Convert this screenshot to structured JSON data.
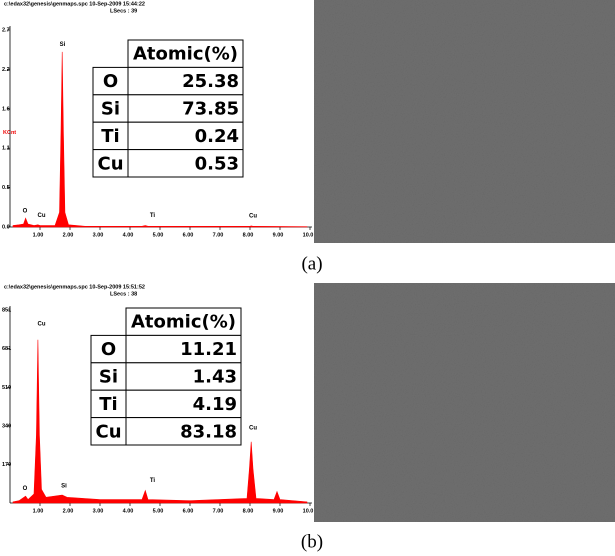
{
  "chart_data": [
    {
      "type": "area",
      "header": "c:\\edax32\\genesis\\genmaps.spc 10-Sep-2009 15:44:22",
      "subheader": "LSecs : 39",
      "ylabel": "KCnt",
      "color": "#ff0000",
      "x": [
        0.1,
        0.3,
        0.45,
        0.52,
        0.6,
        0.8,
        0.93,
        1.0,
        1.5,
        1.65,
        1.7,
        1.74,
        1.78,
        1.83,
        1.95,
        2.5,
        4.4,
        4.51,
        4.6,
        8.0,
        8.04,
        8.1,
        9.9
      ],
      "values": [
        0.02,
        0.03,
        0.04,
        0.12,
        0.04,
        0.02,
        0.03,
        0.02,
        0.02,
        0.2,
        1.3,
        2.4,
        1.3,
        0.2,
        0.03,
        0.01,
        0.01,
        0.02,
        0.01,
        0.01,
        0.015,
        0.01,
        0.005
      ],
      "xlim": [
        0,
        10
      ],
      "ylim": [
        0,
        2.7
      ],
      "xticks": [
        {
          "value": 1,
          "label": "1.00"
        },
        {
          "value": 2,
          "label": "2.00"
        },
        {
          "value": 3,
          "label": "3.00"
        },
        {
          "value": 4,
          "label": "4.00"
        },
        {
          "value": 5,
          "label": "5.00"
        },
        {
          "value": 6,
          "label": "6.00"
        },
        {
          "value": 7,
          "label": "7.00"
        },
        {
          "value": 8,
          "label": "8.00"
        },
        {
          "value": 9,
          "label": "9.00"
        },
        {
          "value": 10,
          "label": "10.0"
        }
      ],
      "yticks": [
        {
          "value": 0,
          "label": "0.0"
        },
        {
          "value": 0.54,
          "label": "0.5"
        },
        {
          "value": 1.08,
          "label": "1.1"
        },
        {
          "value": 1.62,
          "label": "1.6"
        },
        {
          "value": 2.16,
          "label": "2.2"
        },
        2.7
      ],
      "annotations": [
        {
          "text": "O",
          "x": 0.5,
          "y": 0.22
        },
        {
          "text": "Cu",
          "x": 1.05,
          "y": 0.16
        },
        {
          "text": "Si",
          "x": 1.75,
          "y": 2.5
        },
        {
          "text": "Ti",
          "x": 4.75,
          "y": 0.16
        },
        {
          "text": "Cu",
          "x": 8.1,
          "y": 0.15
        }
      ]
    },
    {
      "type": "area",
      "header": "c:\\edax32\\genesis\\genmaps.spc 10-Sep-2009 15:51:52",
      "subheader": "LSecs : 38",
      "color": "#ff0000",
      "x": [
        0.1,
        0.3,
        0.52,
        0.6,
        0.8,
        0.88,
        0.93,
        0.98,
        1.05,
        1.2,
        1.74,
        1.9,
        3,
        4.4,
        4.51,
        4.6,
        6,
        7.9,
        7.98,
        8.04,
        8.1,
        8.2,
        8.8,
        8.9,
        9.0,
        9.9
      ],
      "values": [
        5,
        10,
        30,
        15,
        40,
        300,
        720,
        300,
        60,
        25,
        35,
        25,
        15,
        15,
        55,
        15,
        10,
        20,
        150,
        270,
        150,
        20,
        15,
        50,
        15,
        5
      ],
      "xlim": [
        0,
        10
      ],
      "ylim": [
        0,
        851
      ],
      "xticks": [
        {
          "value": 1,
          "label": "1.00"
        },
        {
          "value": 2,
          "label": "2.00"
        },
        {
          "value": 3,
          "label": "3.00"
        },
        {
          "value": 4,
          "label": "4.00"
        },
        {
          "value": 5,
          "label": "5.00"
        },
        {
          "value": 6,
          "label": "6.00"
        },
        {
          "value": 7,
          "label": "7.00"
        },
        {
          "value": 8,
          "label": "8.00"
        },
        {
          "value": 9,
          "label": "9.00"
        },
        {
          "value": 10,
          "label": "10.0"
        }
      ],
      "yticks": [
        170,
        340,
        510,
        681,
        851
      ],
      "annotations": [
        {
          "text": "Cu",
          "x": 1.05,
          "y": 790
        },
        {
          "text": "O",
          "x": 0.5,
          "y": 65
        },
        {
          "text": "Si",
          "x": 1.8,
          "y": 75
        },
        {
          "text": "Ti",
          "x": 4.75,
          "y": 100
        },
        {
          "text": "Cu",
          "x": 8.1,
          "y": 330
        }
      ]
    }
  ],
  "tables": [
    {
      "header": "Atomic(%)",
      "rows": [
        [
          "O",
          "25.38"
        ],
        [
          "Si",
          "73.85"
        ],
        [
          "Ti",
          "0.24"
        ],
        [
          "Cu",
          "0.53"
        ]
      ]
    },
    {
      "header": "Atomic(%)",
      "rows": [
        [
          "O",
          "11.21"
        ],
        [
          "Si",
          "1.43"
        ],
        [
          "Ti",
          "4.19"
        ],
        [
          "Cu",
          "83.18"
        ]
      ]
    }
  ],
  "captions": [
    "(a)",
    "(b)"
  ]
}
